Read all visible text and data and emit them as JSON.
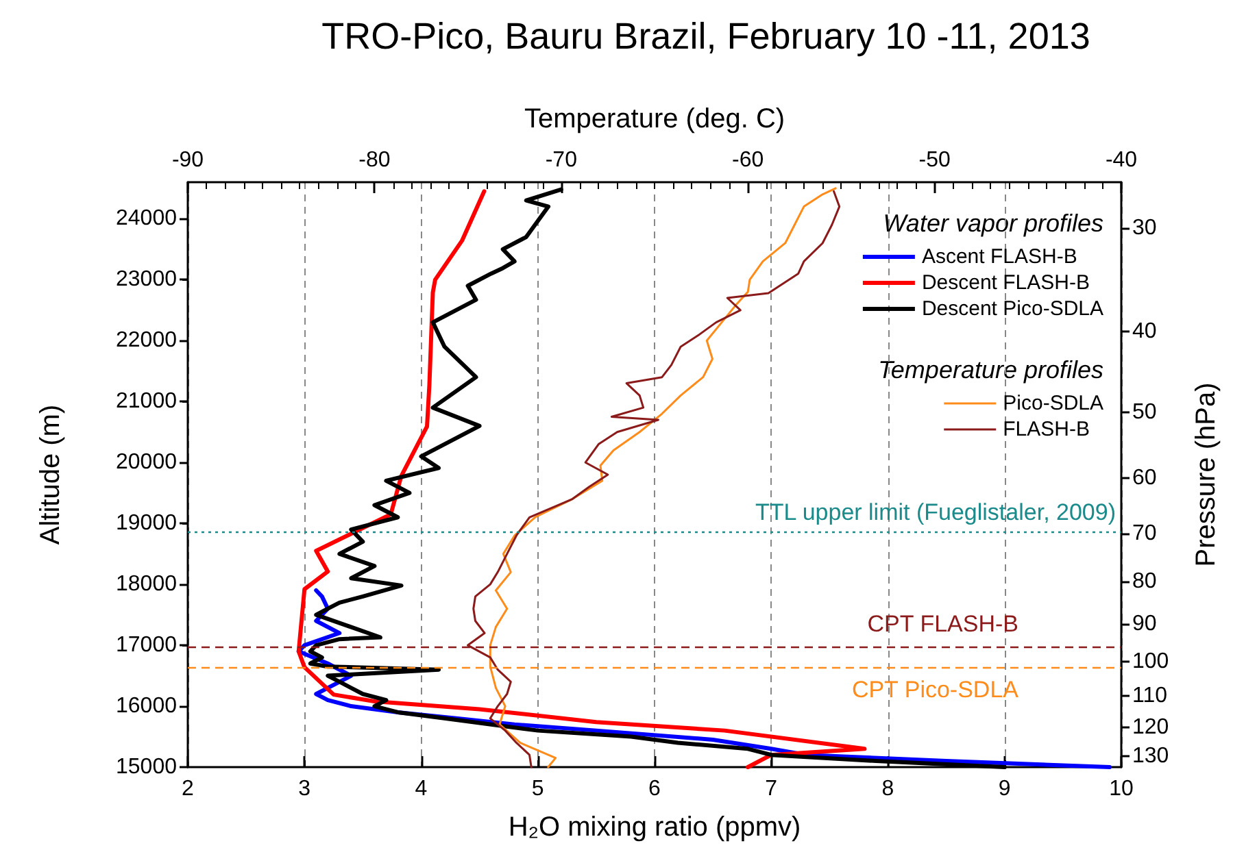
{
  "chart_data": {
    "type": "line",
    "title": "TRO-Pico, Bauru Brazil, February 10 -11, 2013",
    "xlabel": "H₂O mixing ratio (ppmv)",
    "x2label": "Temperature (deg. C)",
    "ylabel": "Altitude (m)",
    "y2label": "Pressure (hPa)",
    "xlim": [
      2,
      10
    ],
    "xticks": [
      2,
      3,
      4,
      5,
      6,
      7,
      8,
      9,
      10
    ],
    "x2lim": [
      -90,
      -40
    ],
    "x2ticks": [
      -90,
      -80,
      -70,
      -60,
      -50,
      -40
    ],
    "ylim": [
      15000,
      24600
    ],
    "yticks": [
      15000,
      16000,
      17000,
      18000,
      19000,
      20000,
      21000,
      22000,
      23000,
      24000
    ],
    "y2lim": [
      134,
      26.4
    ],
    "y2ticks": [
      30,
      40,
      50,
      60,
      70,
      80,
      90,
      100,
      110,
      120,
      130
    ],
    "log": "y2",
    "grid": "x",
    "legend": "top right",
    "marker": "none",
    "line_style": "solid",
    "annotations": [
      "Water vapor profiles",
      "Temperature profiles"
    ],
    "ref_lines": [
      {
        "axis": "y",
        "value": 18860,
        "label": "TTL upper limit (Fueglistaler, 2009)",
        "color": "#1a8a8a",
        "line_style": "dotted"
      },
      {
        "axis": "y",
        "value": 16980,
        "label": "CPT FLASH-B",
        "color": "#8b1a1a",
        "line_style": "dashed"
      },
      {
        "axis": "y",
        "value": 16640,
        "label": "CPT Pico-SDLA",
        "color": "#ff8c1a",
        "line_style": "dashed"
      }
    ],
    "series": [
      {
        "name": "Ascent FLASH-B",
        "color": "#0000ff",
        "x": [
          9.9,
          8.5,
          7.3,
          7.0,
          6.5,
          5.5,
          4.8,
          4.3,
          3.8,
          3.4,
          3.2,
          3.1,
          3.2,
          3.4,
          3.2,
          2.95,
          3.0,
          3.3,
          3.1,
          3.2,
          3.15,
          3.1
        ],
        "values": [
          15000,
          15100,
          15200,
          15300,
          15450,
          15600,
          15700,
          15800,
          15900,
          16000,
          16100,
          16200,
          16300,
          16500,
          16700,
          16900,
          17000,
          17200,
          17400,
          17600,
          17800,
          17900
        ]
      },
      {
        "name": "Descent FLASH-B",
        "color": "#ff0000",
        "x": [
          6.8,
          7.0,
          7.8,
          6.6,
          5.5,
          4.5,
          3.6,
          3.25,
          3.0,
          2.95,
          3.0,
          3.2,
          3.1,
          3.74,
          3.83,
          4.05,
          4.07,
          4.1,
          4.12,
          4.35,
          4.54
        ],
        "values": [
          15000,
          15200,
          15300,
          15600,
          15740,
          15950,
          16080,
          16190,
          16640,
          16900,
          17920,
          18210,
          18550,
          19150,
          19780,
          20590,
          21260,
          22790,
          23000,
          23640,
          24450
        ]
      },
      {
        "name": "Descent Pico-SDLA",
        "color": "#000000",
        "x": [
          9.0,
          7.9,
          7.0,
          6.8,
          6.2,
          5.8,
          5.0,
          4.6,
          4.2,
          3.8,
          3.6,
          3.7,
          3.5,
          3.4,
          3.3,
          3.2,
          4.15,
          3.2,
          3.05,
          3.15,
          3.05,
          3.1,
          3.3,
          3.65,
          3.1,
          3.2,
          3.3,
          3.5,
          3.83,
          3.4,
          3.6,
          3.3,
          3.5,
          3.4,
          3.8,
          3.6,
          3.9,
          3.7,
          4.15,
          4.0,
          4.5,
          4.1,
          4.47,
          4.2,
          4.1,
          4.47,
          4.4,
          4.6,
          4.7,
          4.8,
          4.7,
          4.9,
          5.09,
          4.9,
          5.2
        ],
        "values": [
          15000,
          15100,
          15200,
          15300,
          15400,
          15500,
          15600,
          15700,
          15800,
          15900,
          16000,
          16100,
          16200,
          16300,
          16400,
          16500,
          16600,
          16650,
          16700,
          16800,
          16900,
          17000,
          17100,
          17130,
          17500,
          17600,
          17700,
          17800,
          17980,
          18100,
          18300,
          18500,
          18700,
          18900,
          19100,
          19300,
          19500,
          19700,
          19910,
          20100,
          20600,
          20900,
          21400,
          21900,
          22300,
          22670,
          22900,
          23100,
          23190,
          23300,
          23500,
          23700,
          24200,
          24300,
          24480
        ]
      },
      {
        "name": "Pico-SDLA",
        "color": "#ff8c1a",
        "axis": "x2",
        "x": [
          -70.7,
          -70.3,
          -72.2,
          -73.3,
          -73,
          -73.5,
          -73.8,
          -73.8,
          -73.5,
          -72.9,
          -73.5,
          -72.7,
          -73.1,
          -72.5,
          -71.4,
          -69.4,
          -67.8,
          -67.9,
          -67.2,
          -65.8,
          -64.6,
          -63.6,
          -62.4,
          -61.9,
          -62.2,
          -61.4,
          -60.6,
          -60.0,
          -59.9,
          -59.2,
          -58.0,
          -57.5,
          -57.0,
          -56.0,
          -55.3
        ],
        "values": [
          15000,
          15150,
          15400,
          15700,
          16000,
          16300,
          16650,
          17000,
          17300,
          17600,
          17900,
          18200,
          18500,
          18800,
          19100,
          19400,
          19700,
          19950,
          20200,
          20500,
          20800,
          21100,
          21400,
          21700,
          22000,
          22300,
          22600,
          22800,
          23000,
          23300,
          23600,
          23900,
          24200,
          24400,
          24500
        ]
      },
      {
        "name": "FLASH-B",
        "color": "#8b1a1a",
        "axis": "x2",
        "x": [
          -71.6,
          -71.7,
          -72.4,
          -73.0,
          -73.8,
          -73.4,
          -72.9,
          -72.7,
          -73.4,
          -73.8,
          -75.0,
          -74.1,
          -74.6,
          -74.7,
          -74.6,
          -73.8,
          -73.4,
          -72.9,
          -72.4,
          -71.7,
          -69.4,
          -68.5,
          -67.5,
          -68.7,
          -68.0,
          -67.0,
          -64.8,
          -67.3,
          -65.6,
          -65.8,
          -66.5,
          -64.6,
          -64.1,
          -63.6,
          -62.6,
          -61.7,
          -60.4,
          -61.1,
          -58.9,
          -57.3,
          -57.0,
          -56.0,
          -55.5,
          -55.1,
          -55.4
        ],
        "values": [
          15000,
          15200,
          15400,
          15600,
          15800,
          16000,
          16200,
          16400,
          16600,
          16800,
          17000,
          17200,
          17400,
          17600,
          17800,
          18000,
          18200,
          18500,
          18800,
          19100,
          19400,
          19600,
          19800,
          20000,
          20300,
          20500,
          20700,
          20750,
          20900,
          21100,
          21300,
          21400,
          21600,
          21900,
          22100,
          22300,
          22500,
          22700,
          22780,
          23100,
          23300,
          23600,
          23900,
          24200,
          24450
        ]
      }
    ]
  }
}
